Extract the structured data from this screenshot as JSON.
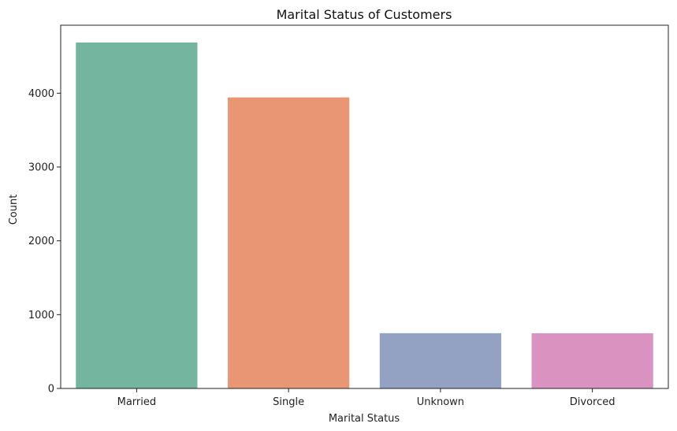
{
  "chart_data": {
    "type": "bar",
    "title": "Marital Status of Customers",
    "xlabel": "Marital Status",
    "ylabel": "Count",
    "categories": [
      "Married",
      "Single",
      "Unknown",
      "Divorced"
    ],
    "values": [
      4687,
      3943,
      749,
      748
    ],
    "colors": [
      "#73b59f",
      "#e99675",
      "#93a2c2",
      "#da92c0"
    ],
    "ylim": [
      0,
      4921
    ],
    "yticks": [
      0,
      1000,
      2000,
      3000,
      4000
    ],
    "grid": false,
    "legend": "none"
  }
}
